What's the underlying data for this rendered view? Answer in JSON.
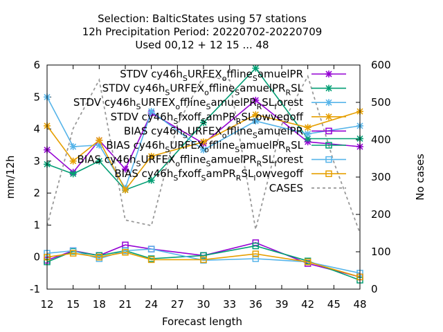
{
  "chart_data": {
    "type": "line",
    "title_lines": [
      "Selection: BalticStates using    57 stations",
      "12h Precipitation    Period: 20220702-20220709",
      "Used  00,12  + 12 15 ... 48"
    ],
    "xlabel": "Forecast length",
    "ylabel": "mm/12h",
    "y2label": "No cases",
    "x": [
      12,
      15,
      18,
      21,
      24,
      27,
      30,
      33,
      36,
      39,
      42,
      45,
      48
    ],
    "xlim": [
      12,
      48
    ],
    "ylim": [
      -1,
      6
    ],
    "y2lim": [
      0,
      600
    ],
    "yticks": [
      "-1",
      "0",
      "1",
      "2",
      "3",
      "4",
      "5",
      "6"
    ],
    "y2ticks": [
      "0",
      "100",
      "200",
      "300",
      "400",
      "500",
      "600"
    ],
    "xticks": [
      "12",
      "15",
      "18",
      "21",
      "24",
      "27",
      "30",
      "33",
      "36",
      "39",
      "42",
      "45",
      "48"
    ],
    "series": [
      {
        "name": "STDV cy46h_SURFEX_offline_SamuelPR",
        "color": "#9400d3",
        "marker": "x",
        "x": [
          12,
          15,
          18,
          21,
          24,
          30,
          36,
          42,
          48
        ],
        "values": [
          3.35,
          2.65,
          3.65,
          2.75,
          4.5,
          3.55,
          4.9,
          3.6,
          3.45
        ]
      },
      {
        "name": "STDV cy46h_SURFEX_offline_SamuelPR_RSL",
        "color": "#009e73",
        "marker": "x",
        "x": [
          12,
          15,
          18,
          21,
          24,
          30,
          36,
          42,
          48
        ],
        "values": [
          2.9,
          2.6,
          3.0,
          2.1,
          2.4,
          4.2,
          5.9,
          3.7,
          3.7
        ]
      },
      {
        "name": "STDV cy46h_SURFEX_offline_SamuelPR_RSL_forest",
        "color": "#56b4e9",
        "marker": "x",
        "x": [
          12,
          15,
          18,
          21,
          24,
          30,
          36,
          42,
          48
        ],
        "values": [
          5.0,
          3.45,
          3.5,
          2.15,
          4.55,
          3.35,
          4.25,
          3.85,
          4.1
        ]
      },
      {
        "name": "STDV cy46h_fxoff_SamPR_RSL_lowvegoff",
        "color": "#e69f00",
        "marker": "x",
        "x": [
          12,
          15,
          18,
          21,
          24,
          30,
          36,
          42,
          48
        ],
        "values": [
          4.1,
          3.0,
          3.65,
          2.1,
          3.15,
          3.6,
          4.45,
          4.05,
          4.55
        ]
      },
      {
        "name": "BIAS cy46h_SURFEX_offline_SamuelPR",
        "color": "#9400d3",
        "marker": "square",
        "x": [
          12,
          15,
          18,
          21,
          24,
          30,
          36,
          42,
          48
        ],
        "values": [
          -0.1,
          0.2,
          0.05,
          0.38,
          0.25,
          0.05,
          0.45,
          -0.2,
          -0.62
        ]
      },
      {
        "name": "BIAS cy46h_SURFEX_offline_SamuelPR_RSL",
        "color": "#009e73",
        "marker": "square",
        "x": [
          12,
          15,
          18,
          21,
          24,
          30,
          36,
          42,
          48
        ],
        "values": [
          -0.15,
          0.18,
          0.05,
          0.2,
          -0.05,
          0.05,
          0.35,
          -0.12,
          -0.72
        ]
      },
      {
        "name": "BIAS cy46h_SURFEX_offline_SamuelPR_RSL_forest",
        "color": "#56b4e9",
        "marker": "square",
        "x": [
          12,
          15,
          18,
          21,
          24,
          30,
          36,
          42,
          48
        ],
        "values": [
          0.12,
          0.2,
          -0.05,
          0.2,
          0.25,
          -0.1,
          -0.05,
          -0.15,
          -0.5
        ]
      },
      {
        "name": "BIAS cy46h_fxoff_SamPR_RSL_lowvegoff",
        "color": "#e69f00",
        "marker": "square",
        "x": [
          12,
          15,
          18,
          21,
          24,
          30,
          36,
          42,
          48
        ],
        "values": [
          0.0,
          0.12,
          0.0,
          0.15,
          -0.08,
          -0.08,
          0.1,
          -0.15,
          -0.62
        ]
      },
      {
        "name": "CASES",
        "color": "#999999",
        "marker": "none",
        "dashed": true,
        "axis": "y2",
        "x": [
          12,
          15,
          18,
          21,
          24,
          27,
          30,
          33,
          36,
          39,
          42,
          45,
          48
        ],
        "values": [
          170,
          430,
          560,
          185,
          170,
          440,
          570,
          560,
          160,
          440,
          570,
          340,
          150
        ]
      }
    ],
    "legend": {
      "position": "top-right",
      "labels": [
        {
          "prefix": "STDV cy46h",
          "parts": [
            [
              "s",
              "S"
            ],
            [
              "n",
              "URFEX"
            ],
            [
              "s",
              "o"
            ],
            [
              "n",
              "ffline"
            ],
            [
              "s",
              "S"
            ],
            [
              "n",
              "amuelPR"
            ]
          ]
        },
        {
          "prefix": "STDV cy46h",
          "parts": [
            [
              "s",
              "S"
            ],
            [
              "n",
              "URFEX"
            ],
            [
              "s",
              "o"
            ],
            [
              "n",
              "ffline"
            ],
            [
              "s",
              "S"
            ],
            [
              "n",
              "amuelPR"
            ],
            [
              "s",
              "R"
            ],
            [
              "n",
              "SL"
            ]
          ]
        },
        {
          "prefix": "STDV cy46h",
          "parts": [
            [
              "s",
              "S"
            ],
            [
              "n",
              "URFEX"
            ],
            [
              "s",
              "o"
            ],
            [
              "n",
              "ffline"
            ],
            [
              "s",
              "S"
            ],
            [
              "n",
              "amuelPR"
            ],
            [
              "s",
              "R"
            ],
            [
              "n",
              "SL"
            ],
            [
              "s",
              "f"
            ],
            [
              "n",
              "orest"
            ]
          ]
        },
        {
          "prefix": "STDV cy46h",
          "parts": [
            [
              "s",
              "S"
            ],
            [
              "n",
              "fxoff"
            ],
            [
              "s",
              "S"
            ],
            [
              "n",
              "amPR"
            ],
            [
              "s",
              "R"
            ],
            [
              "n",
              "SL"
            ],
            [
              "s",
              "l"
            ],
            [
              "n",
              "owvegoff"
            ]
          ]
        },
        {
          "prefix": "BIAS cy46h",
          "parts": [
            [
              "s",
              "S"
            ],
            [
              "n",
              "URFEX"
            ],
            [
              "s",
              "o"
            ],
            [
              "n",
              "ffline"
            ],
            [
              "s",
              "S"
            ],
            [
              "n",
              "amuelPR"
            ]
          ]
        },
        {
          "prefix": "BIAS cy46h",
          "parts": [
            [
              "s",
              "S"
            ],
            [
              "n",
              "URFEX"
            ],
            [
              "s",
              "o"
            ],
            [
              "n",
              "ffline"
            ],
            [
              "s",
              "S"
            ],
            [
              "n",
              "amuelPR"
            ],
            [
              "s",
              "R"
            ],
            [
              "n",
              "SL"
            ]
          ]
        },
        {
          "prefix": "BIAS cy46h",
          "parts": [
            [
              "s",
              "S"
            ],
            [
              "n",
              "URFEX"
            ],
            [
              "s",
              "o"
            ],
            [
              "n",
              "ffline"
            ],
            [
              "s",
              "S"
            ],
            [
              "n",
              "amuelPR"
            ],
            [
              "s",
              "R"
            ],
            [
              "n",
              "SL"
            ],
            [
              "s",
              "f"
            ],
            [
              "n",
              "orest"
            ]
          ]
        },
        {
          "prefix": "BIAS cy46h",
          "parts": [
            [
              "s",
              "S"
            ],
            [
              "n",
              "fxoff"
            ],
            [
              "s",
              "S"
            ],
            [
              "n",
              "amPR"
            ],
            [
              "s",
              "R"
            ],
            [
              "n",
              "SL"
            ],
            [
              "s",
              "l"
            ],
            [
              "n",
              "owvegoff"
            ]
          ]
        },
        {
          "prefix": "CASES",
          "parts": []
        }
      ]
    }
  }
}
